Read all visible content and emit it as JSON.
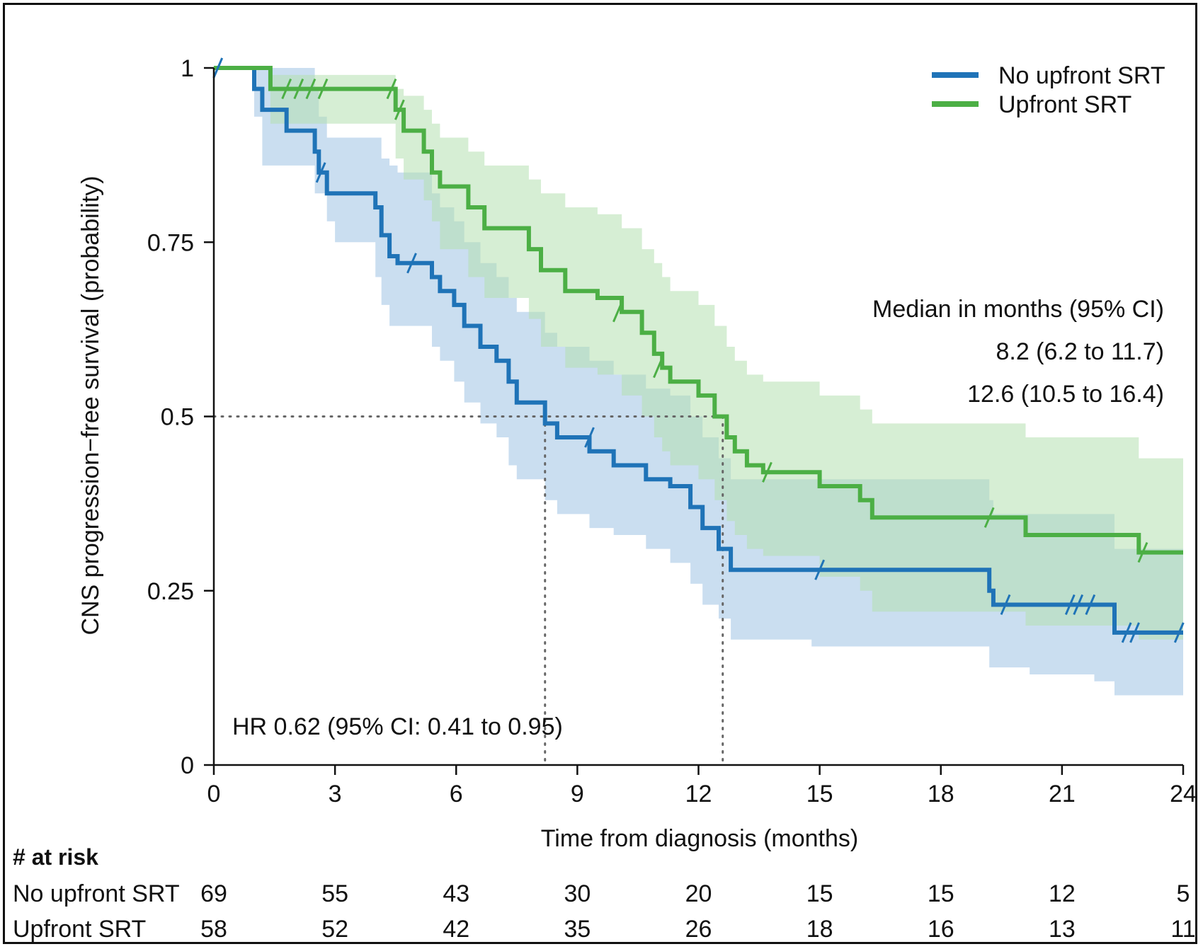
{
  "chart_data": {
    "type": "line",
    "subtype": "kaplan-meier",
    "xlabel": "Time from diagnosis (months)",
    "ylabel": "CNS progression−free survival (probability)",
    "xlim": [
      0,
      24
    ],
    "ylim": [
      0,
      1
    ],
    "x_ticks": [
      0,
      3,
      6,
      9,
      12,
      15,
      18,
      21,
      24
    ],
    "x_tick_labels": [
      "0",
      "3",
      "6",
      "9",
      "12",
      "15",
      "18",
      "21",
      "24"
    ],
    "y_ticks": [
      0,
      0.25,
      0.5,
      0.75,
      1
    ],
    "y_tick_labels": [
      "0",
      "0.25",
      "0.5",
      "0.75",
      "1"
    ],
    "grid": false,
    "legend_position": "top-right",
    "series": [
      {
        "name": "No upfront SRT",
        "color": "#1f73b7",
        "band_color": "#9ec3e3",
        "steps": [
          [
            0,
            1.0
          ],
          [
            1.0,
            0.97
          ],
          [
            1.2,
            0.94
          ],
          [
            1.8,
            0.91
          ],
          [
            2.5,
            0.88
          ],
          [
            2.6,
            0.85
          ],
          [
            2.8,
            0.82
          ],
          [
            4.0,
            0.8
          ],
          [
            4.15,
            0.76
          ],
          [
            4.35,
            0.73
          ],
          [
            4.55,
            0.72
          ],
          [
            5.4,
            0.7
          ],
          [
            5.6,
            0.68
          ],
          [
            5.95,
            0.66
          ],
          [
            6.2,
            0.63
          ],
          [
            6.6,
            0.6
          ],
          [
            7.0,
            0.58
          ],
          [
            7.3,
            0.55
          ],
          [
            7.5,
            0.52
          ],
          [
            8.2,
            0.49
          ],
          [
            8.5,
            0.47
          ],
          [
            9.3,
            0.45
          ],
          [
            9.9,
            0.43
          ],
          [
            10.7,
            0.41
          ],
          [
            11.3,
            0.4
          ],
          [
            11.8,
            0.37
          ],
          [
            12.1,
            0.34
          ],
          [
            12.5,
            0.31
          ],
          [
            12.8,
            0.28
          ],
          [
            19.2,
            0.25
          ],
          [
            19.3,
            0.23
          ],
          [
            22.3,
            0.19
          ],
          [
            24.0,
            0.19
          ]
        ],
        "lower": [
          [
            0,
            1.0
          ],
          [
            1.0,
            0.93
          ],
          [
            1.2,
            0.86
          ],
          [
            2.5,
            0.82
          ],
          [
            2.8,
            0.78
          ],
          [
            3.0,
            0.75
          ],
          [
            4.0,
            0.7
          ],
          [
            4.15,
            0.66
          ],
          [
            4.35,
            0.63
          ],
          [
            5.4,
            0.6
          ],
          [
            5.6,
            0.58
          ],
          [
            5.95,
            0.55
          ],
          [
            6.2,
            0.52
          ],
          [
            6.6,
            0.49
          ],
          [
            7.0,
            0.47
          ],
          [
            7.3,
            0.43
          ],
          [
            7.5,
            0.41
          ],
          [
            8.2,
            0.38
          ],
          [
            8.5,
            0.36
          ],
          [
            9.3,
            0.34
          ],
          [
            9.9,
            0.33
          ],
          [
            10.7,
            0.31
          ],
          [
            11.3,
            0.29
          ],
          [
            11.8,
            0.26
          ],
          [
            12.1,
            0.23
          ],
          [
            12.5,
            0.21
          ],
          [
            12.8,
            0.18
          ],
          [
            14.8,
            0.17
          ],
          [
            19.2,
            0.14
          ],
          [
            20.2,
            0.13
          ],
          [
            21.8,
            0.12
          ],
          [
            22.3,
            0.1
          ],
          [
            24.0,
            0.1
          ]
        ],
        "upper": [
          [
            0,
            1.0
          ],
          [
            1.0,
            1.0
          ],
          [
            2.5,
            0.97
          ],
          [
            2.6,
            0.93
          ],
          [
            2.8,
            0.9
          ],
          [
            4.0,
            0.9
          ],
          [
            4.15,
            0.87
          ],
          [
            4.35,
            0.86
          ],
          [
            4.55,
            0.85
          ],
          [
            5.4,
            0.82
          ],
          [
            5.6,
            0.8
          ],
          [
            5.95,
            0.78
          ],
          [
            6.2,
            0.75
          ],
          [
            6.6,
            0.72
          ],
          [
            7.0,
            0.7
          ],
          [
            7.3,
            0.67
          ],
          [
            7.5,
            0.65
          ],
          [
            8.2,
            0.62
          ],
          [
            8.5,
            0.6
          ],
          [
            9.3,
            0.58
          ],
          [
            9.9,
            0.56
          ],
          [
            10.7,
            0.54
          ],
          [
            11.3,
            0.53
          ],
          [
            11.8,
            0.5
          ],
          [
            12.1,
            0.47
          ],
          [
            12.5,
            0.44
          ],
          [
            12.8,
            0.41
          ],
          [
            19.2,
            0.38
          ],
          [
            19.3,
            0.36
          ],
          [
            22.3,
            0.31
          ],
          [
            24.0,
            0.31
          ]
        ],
        "censored": [
          [
            0.1,
            1.0
          ],
          [
            2.65,
            0.85
          ],
          [
            4.9,
            0.72
          ],
          [
            9.3,
            0.47
          ],
          [
            15.0,
            0.28
          ],
          [
            19.6,
            0.23
          ],
          [
            21.2,
            0.23
          ],
          [
            21.4,
            0.23
          ],
          [
            21.7,
            0.23
          ],
          [
            22.6,
            0.19
          ],
          [
            22.8,
            0.19
          ],
          [
            23.9,
            0.19
          ]
        ]
      },
      {
        "name": "Upfront SRT",
        "color": "#4caf45",
        "band_color": "#b4e0b0",
        "steps": [
          [
            0,
            1.0
          ],
          [
            1.4,
            0.97
          ],
          [
            4.5,
            0.94
          ],
          [
            4.7,
            0.91
          ],
          [
            5.2,
            0.88
          ],
          [
            5.4,
            0.85
          ],
          [
            5.6,
            0.83
          ],
          [
            6.3,
            0.8
          ],
          [
            6.7,
            0.77
          ],
          [
            7.8,
            0.74
          ],
          [
            8.1,
            0.71
          ],
          [
            8.7,
            0.68
          ],
          [
            9.5,
            0.67
          ],
          [
            10.1,
            0.65
          ],
          [
            10.6,
            0.62
          ],
          [
            10.9,
            0.59
          ],
          [
            11.1,
            0.57
          ],
          [
            11.3,
            0.55
          ],
          [
            12.0,
            0.53
          ],
          [
            12.4,
            0.5
          ],
          [
            12.7,
            0.47
          ],
          [
            12.9,
            0.45
          ],
          [
            13.2,
            0.43
          ],
          [
            13.6,
            0.42
          ],
          [
            15.0,
            0.4
          ],
          [
            16.0,
            0.38
          ],
          [
            16.3,
            0.355
          ],
          [
            20.1,
            0.33
          ],
          [
            22.9,
            0.305
          ],
          [
            24.0,
            0.305
          ]
        ],
        "lower": [
          [
            0,
            1.0
          ],
          [
            1.4,
            0.92
          ],
          [
            4.5,
            0.87
          ],
          [
            4.7,
            0.84
          ],
          [
            5.2,
            0.81
          ],
          [
            5.4,
            0.78
          ],
          [
            5.6,
            0.74
          ],
          [
            6.3,
            0.7
          ],
          [
            6.7,
            0.67
          ],
          [
            7.8,
            0.64
          ],
          [
            8.1,
            0.6
          ],
          [
            8.7,
            0.57
          ],
          [
            9.5,
            0.56
          ],
          [
            10.1,
            0.53
          ],
          [
            10.6,
            0.5
          ],
          [
            10.9,
            0.47
          ],
          [
            11.1,
            0.45
          ],
          [
            11.3,
            0.43
          ],
          [
            12.0,
            0.41
          ],
          [
            12.4,
            0.38
          ],
          [
            12.7,
            0.35
          ],
          [
            12.9,
            0.33
          ],
          [
            13.2,
            0.31
          ],
          [
            13.6,
            0.3
          ],
          [
            15.0,
            0.27
          ],
          [
            16.0,
            0.25
          ],
          [
            16.3,
            0.22
          ],
          [
            20.1,
            0.2
          ],
          [
            22.9,
            0.18
          ],
          [
            24.0,
            0.18
          ]
        ],
        "upper": [
          [
            0,
            1.0
          ],
          [
            1.4,
            0.99
          ],
          [
            4.5,
            0.97
          ],
          [
            4.7,
            0.96
          ],
          [
            5.2,
            0.94
          ],
          [
            5.4,
            0.92
          ],
          [
            5.6,
            0.9
          ],
          [
            6.3,
            0.88
          ],
          [
            6.7,
            0.86
          ],
          [
            7.8,
            0.84
          ],
          [
            8.1,
            0.82
          ],
          [
            8.7,
            0.8
          ],
          [
            9.5,
            0.79
          ],
          [
            10.1,
            0.77
          ],
          [
            10.6,
            0.74
          ],
          [
            10.9,
            0.72
          ],
          [
            11.1,
            0.7
          ],
          [
            11.3,
            0.68
          ],
          [
            12.0,
            0.66
          ],
          [
            12.4,
            0.63
          ],
          [
            12.7,
            0.6
          ],
          [
            12.9,
            0.58
          ],
          [
            13.2,
            0.56
          ],
          [
            13.6,
            0.55
          ],
          [
            15.0,
            0.53
          ],
          [
            16.0,
            0.51
          ],
          [
            16.3,
            0.49
          ],
          [
            20.1,
            0.47
          ],
          [
            22.9,
            0.44
          ],
          [
            24.0,
            0.44
          ]
        ],
        "censored": [
          [
            1.8,
            0.97
          ],
          [
            2.1,
            0.97
          ],
          [
            2.4,
            0.97
          ],
          [
            2.7,
            0.97
          ],
          [
            4.4,
            0.97
          ],
          [
            4.6,
            0.94
          ],
          [
            10.0,
            0.65
          ],
          [
            11.0,
            0.57
          ],
          [
            13.7,
            0.42
          ],
          [
            19.2,
            0.355
          ],
          [
            23.0,
            0.305
          ]
        ]
      }
    ],
    "median_lines": [
      8.2,
      12.6
    ],
    "median_header": "Median in months (95% CI)",
    "median_values": [
      "8.2 (6.2 to 11.7)",
      "12.6 (10.5 to 16.4)"
    ],
    "hr_text": "HR 0.62 (95% CI: 0.41 to 0.95)",
    "risk_table": {
      "title": "# at risk",
      "times": [
        0,
        3,
        6,
        9,
        12,
        15,
        18,
        21,
        24
      ],
      "rows": [
        {
          "label": "No upfront SRT",
          "values": [
            "69",
            "55",
            "43",
            "30",
            "20",
            "15",
            "15",
            "12",
            "5"
          ]
        },
        {
          "label": "Upfront SRT",
          "values": [
            "58",
            "52",
            "42",
            "35",
            "26",
            "18",
            "16",
            "13",
            "11"
          ]
        }
      ]
    }
  }
}
